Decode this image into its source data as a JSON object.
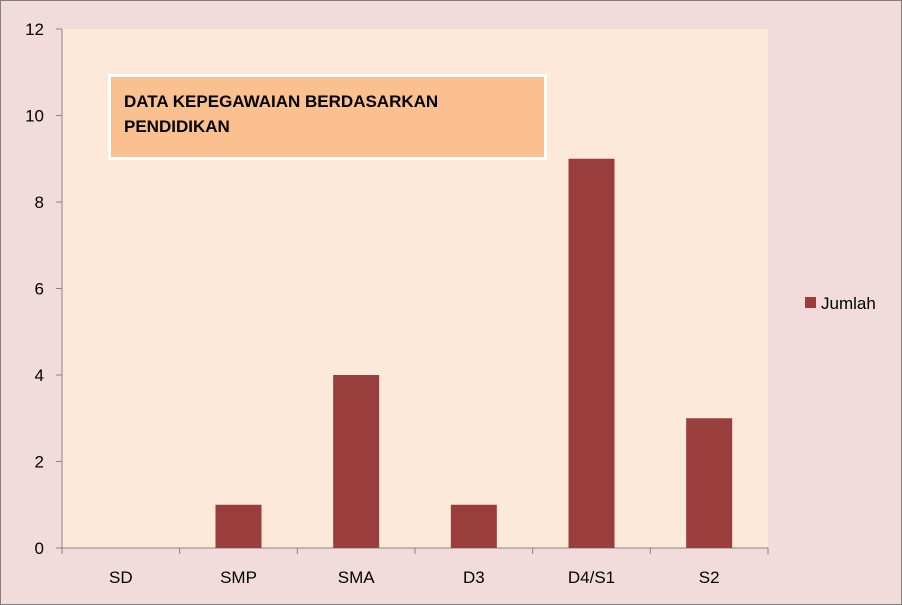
{
  "chart_data": {
    "type": "bar",
    "title": "DATA KEPEGAWAIAN BERDASARKAN PENDIDIKAN",
    "categories": [
      "SD",
      "SMP",
      "SMA",
      "D3",
      "D4/S1",
      "S2"
    ],
    "series": [
      {
        "name": "Jumlah",
        "values": [
          0,
          1,
          4,
          1,
          9,
          3
        ]
      }
    ],
    "ylim": [
      0,
      12
    ],
    "yticks": [
      0,
      2,
      4,
      6,
      8,
      10,
      12
    ],
    "ytick_labels": [
      "0",
      "2",
      "4",
      "6",
      "8",
      "10",
      "12"
    ],
    "grid": false,
    "legend_position": "right"
  },
  "colors": {
    "bar": "#993d3d",
    "plot_area": "#fde9d9",
    "chart_area": "#f2dcdb",
    "title_box": "#fac090"
  }
}
